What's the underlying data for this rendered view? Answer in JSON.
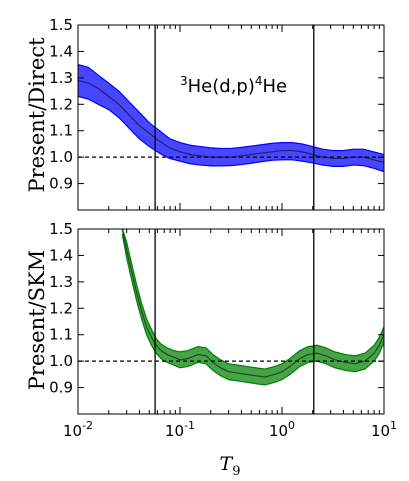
{
  "chart_data": [
    {
      "type": "area",
      "panel": "top",
      "ylabel": "Present/Direct",
      "annotation": {
        "super1": "3",
        "main1": "He(d,p)",
        "super2": "4",
        "main2": "He"
      },
      "x_scale": "log",
      "xlim": [
        0.01,
        10
      ],
      "ylim": [
        0.8,
        1.5
      ],
      "y_ticks": [
        "0.9",
        "1.0",
        "1.1",
        "1.2",
        "1.3",
        "1.4",
        "1.5"
      ],
      "reference_line": 1.0,
      "vertical_lines": [
        0.057,
        2.05
      ],
      "color": "#0000ff",
      "series": [
        {
          "x": [
            0.01,
            0.0126,
            0.0158,
            0.02,
            0.0251,
            0.0316,
            0.0398,
            0.05,
            0.063,
            0.079,
            0.1,
            0.126,
            0.158,
            0.2,
            0.251,
            0.316,
            0.398,
            0.5,
            0.63,
            0.79,
            1.0,
            1.26,
            1.58,
            2.0,
            2.51,
            3.16,
            3.98,
            5.0,
            6.3,
            7.9,
            10.0
          ],
          "center": [
            1.29,
            1.28,
            1.26,
            1.23,
            1.2,
            1.16,
            1.12,
            1.09,
            1.06,
            1.035,
            1.02,
            1.01,
            1.005,
            1.0,
            1.0,
            1.0,
            1.005,
            1.01,
            1.015,
            1.02,
            1.025,
            1.025,
            1.02,
            1.01,
            1.0,
            0.995,
            0.995,
            1.0,
            1.0,
            0.99,
            0.98
          ],
          "upper": [
            1.35,
            1.34,
            1.31,
            1.28,
            1.25,
            1.21,
            1.17,
            1.13,
            1.1,
            1.07,
            1.055,
            1.045,
            1.04,
            1.035,
            1.033,
            1.033,
            1.037,
            1.042,
            1.047,
            1.052,
            1.055,
            1.055,
            1.05,
            1.04,
            1.03,
            1.025,
            1.025,
            1.03,
            1.03,
            1.02,
            1.01
          ],
          "lower": [
            1.23,
            1.22,
            1.2,
            1.18,
            1.15,
            1.11,
            1.07,
            1.04,
            1.015,
            0.995,
            0.985,
            0.975,
            0.97,
            0.967,
            0.967,
            0.968,
            0.972,
            0.977,
            0.983,
            0.988,
            0.99,
            0.99,
            0.985,
            0.978,
            0.97,
            0.965,
            0.965,
            0.97,
            0.968,
            0.958,
            0.945
          ]
        }
      ]
    },
    {
      "type": "area",
      "panel": "bottom",
      "ylabel": "Present/SKM",
      "xlabel": {
        "main": "T",
        "sub": "9"
      },
      "x_scale": "log",
      "xlim": [
        0.01,
        10
      ],
      "ylim": [
        0.8,
        1.5
      ],
      "x_ticks": [
        {
          "value": 0.01,
          "base": "10",
          "exp": "-2"
        },
        {
          "value": 0.1,
          "base": "10",
          "exp": "-1"
        },
        {
          "value": 1,
          "base": "10",
          "exp": "0"
        },
        {
          "value": 10,
          "base": "10",
          "exp": "1"
        }
      ],
      "y_ticks": [
        "0.9",
        "1.0",
        "1.1",
        "1.2",
        "1.3",
        "1.4",
        "1.5"
      ],
      "reference_line": 1.0,
      "vertical_lines": [
        0.057,
        2.05
      ],
      "color": "#008000",
      "series": [
        {
          "x": [
            0.0272,
            0.03,
            0.0335,
            0.0375,
            0.042,
            0.047,
            0.0525,
            0.0585,
            0.065,
            0.075,
            0.087,
            0.1,
            0.12,
            0.15,
            0.18,
            0.21,
            0.25,
            0.3,
            0.37,
            0.45,
            0.55,
            0.68,
            0.85,
            1.0,
            1.2,
            1.5,
            1.8,
            2.2,
            2.7,
            3.3,
            4.2,
            5.2,
            6.5,
            8.0,
            9.0,
            10.0
          ],
          "center": [
            1.5,
            1.42,
            1.34,
            1.26,
            1.19,
            1.13,
            1.09,
            1.06,
            1.04,
            1.025,
            1.015,
            1.005,
            1.01,
            1.025,
            1.02,
            0.995,
            0.975,
            0.96,
            0.955,
            0.95,
            0.945,
            0.94,
            0.95,
            0.96,
            0.98,
            1.01,
            1.025,
            1.03,
            1.02,
            1.005,
            0.995,
            0.99,
            1.0,
            1.03,
            1.06,
            1.1
          ],
          "upper": [
            1.5,
            1.45,
            1.37,
            1.29,
            1.22,
            1.16,
            1.12,
            1.085,
            1.065,
            1.05,
            1.04,
            1.035,
            1.04,
            1.055,
            1.05,
            1.025,
            1.005,
            0.99,
            0.985,
            0.98,
            0.975,
            0.97,
            0.98,
            0.99,
            1.01,
            1.04,
            1.055,
            1.06,
            1.05,
            1.035,
            1.025,
            1.02,
            1.03,
            1.06,
            1.09,
            1.13
          ],
          "lower": [
            1.48,
            1.39,
            1.31,
            1.23,
            1.16,
            1.1,
            1.06,
            1.03,
            1.01,
            0.995,
            0.985,
            0.975,
            0.98,
            0.995,
            0.99,
            0.965,
            0.945,
            0.93,
            0.925,
            0.92,
            0.915,
            0.91,
            0.92,
            0.93,
            0.95,
            0.98,
            0.995,
            1.0,
            0.99,
            0.975,
            0.965,
            0.96,
            0.97,
            1.0,
            1.03,
            1.07
          ]
        }
      ]
    }
  ]
}
